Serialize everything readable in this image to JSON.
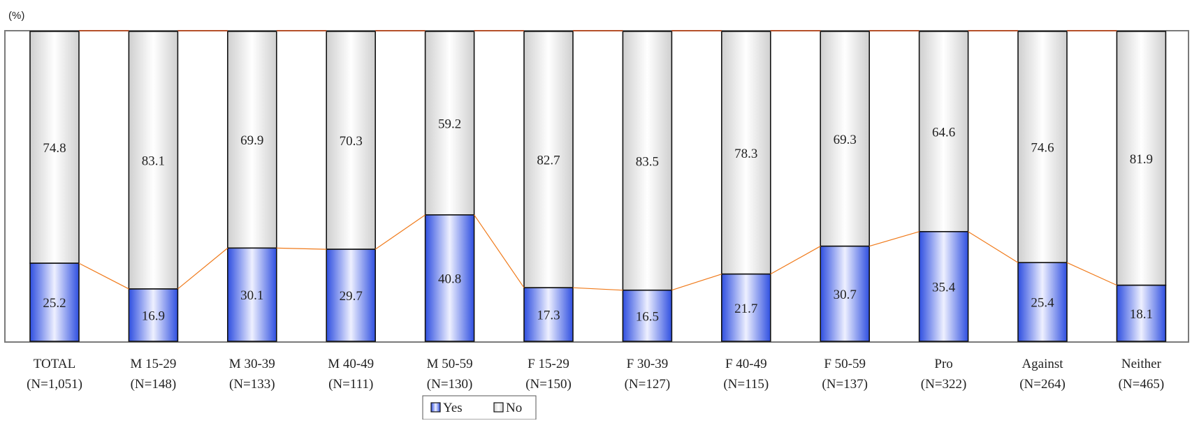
{
  "chart_data": {
    "type": "bar",
    "stacked": true,
    "percent_stacked": true,
    "unit_label": "(%)",
    "ylim": [
      0,
      100
    ],
    "grid": false,
    "legend_position": "bottom-center",
    "series_lines": true,
    "categories": [
      {
        "line1": "TOTAL",
        "line2": "(N=1,051)"
      },
      {
        "line1": "M 15-29",
        "line2": "(N=148)"
      },
      {
        "line1": "M 30-39",
        "line2": "(N=133)"
      },
      {
        "line1": "M 40-49",
        "line2": "(N=111)"
      },
      {
        "line1": "M 50-59",
        "line2": "(N=130)"
      },
      {
        "line1": "F 15-29",
        "line2": "(N=150)"
      },
      {
        "line1": "F 30-39",
        "line2": "(N=127)"
      },
      {
        "line1": "F 40-49",
        "line2": "(N=115)"
      },
      {
        "line1": "F 50-59",
        "line2": "(N=137)"
      },
      {
        "line1": "Pro",
        "line2": "(N=322)"
      },
      {
        "line1": "Against",
        "line2": "(N=264)"
      },
      {
        "line1": "Neither",
        "line2": "(N=465)"
      }
    ],
    "series": [
      {
        "name": "Yes",
        "color": "#3f5fe6",
        "values": [
          25.2,
          16.9,
          30.1,
          29.7,
          40.8,
          17.3,
          16.5,
          21.7,
          30.7,
          35.4,
          25.4,
          18.1
        ]
      },
      {
        "name": "No",
        "color": "#dedede",
        "values": [
          74.8,
          83.1,
          69.9,
          70.3,
          59.2,
          82.7,
          83.5,
          78.3,
          69.3,
          64.6,
          74.6,
          81.9
        ]
      }
    ],
    "series_line_color": "#f07a1a"
  }
}
